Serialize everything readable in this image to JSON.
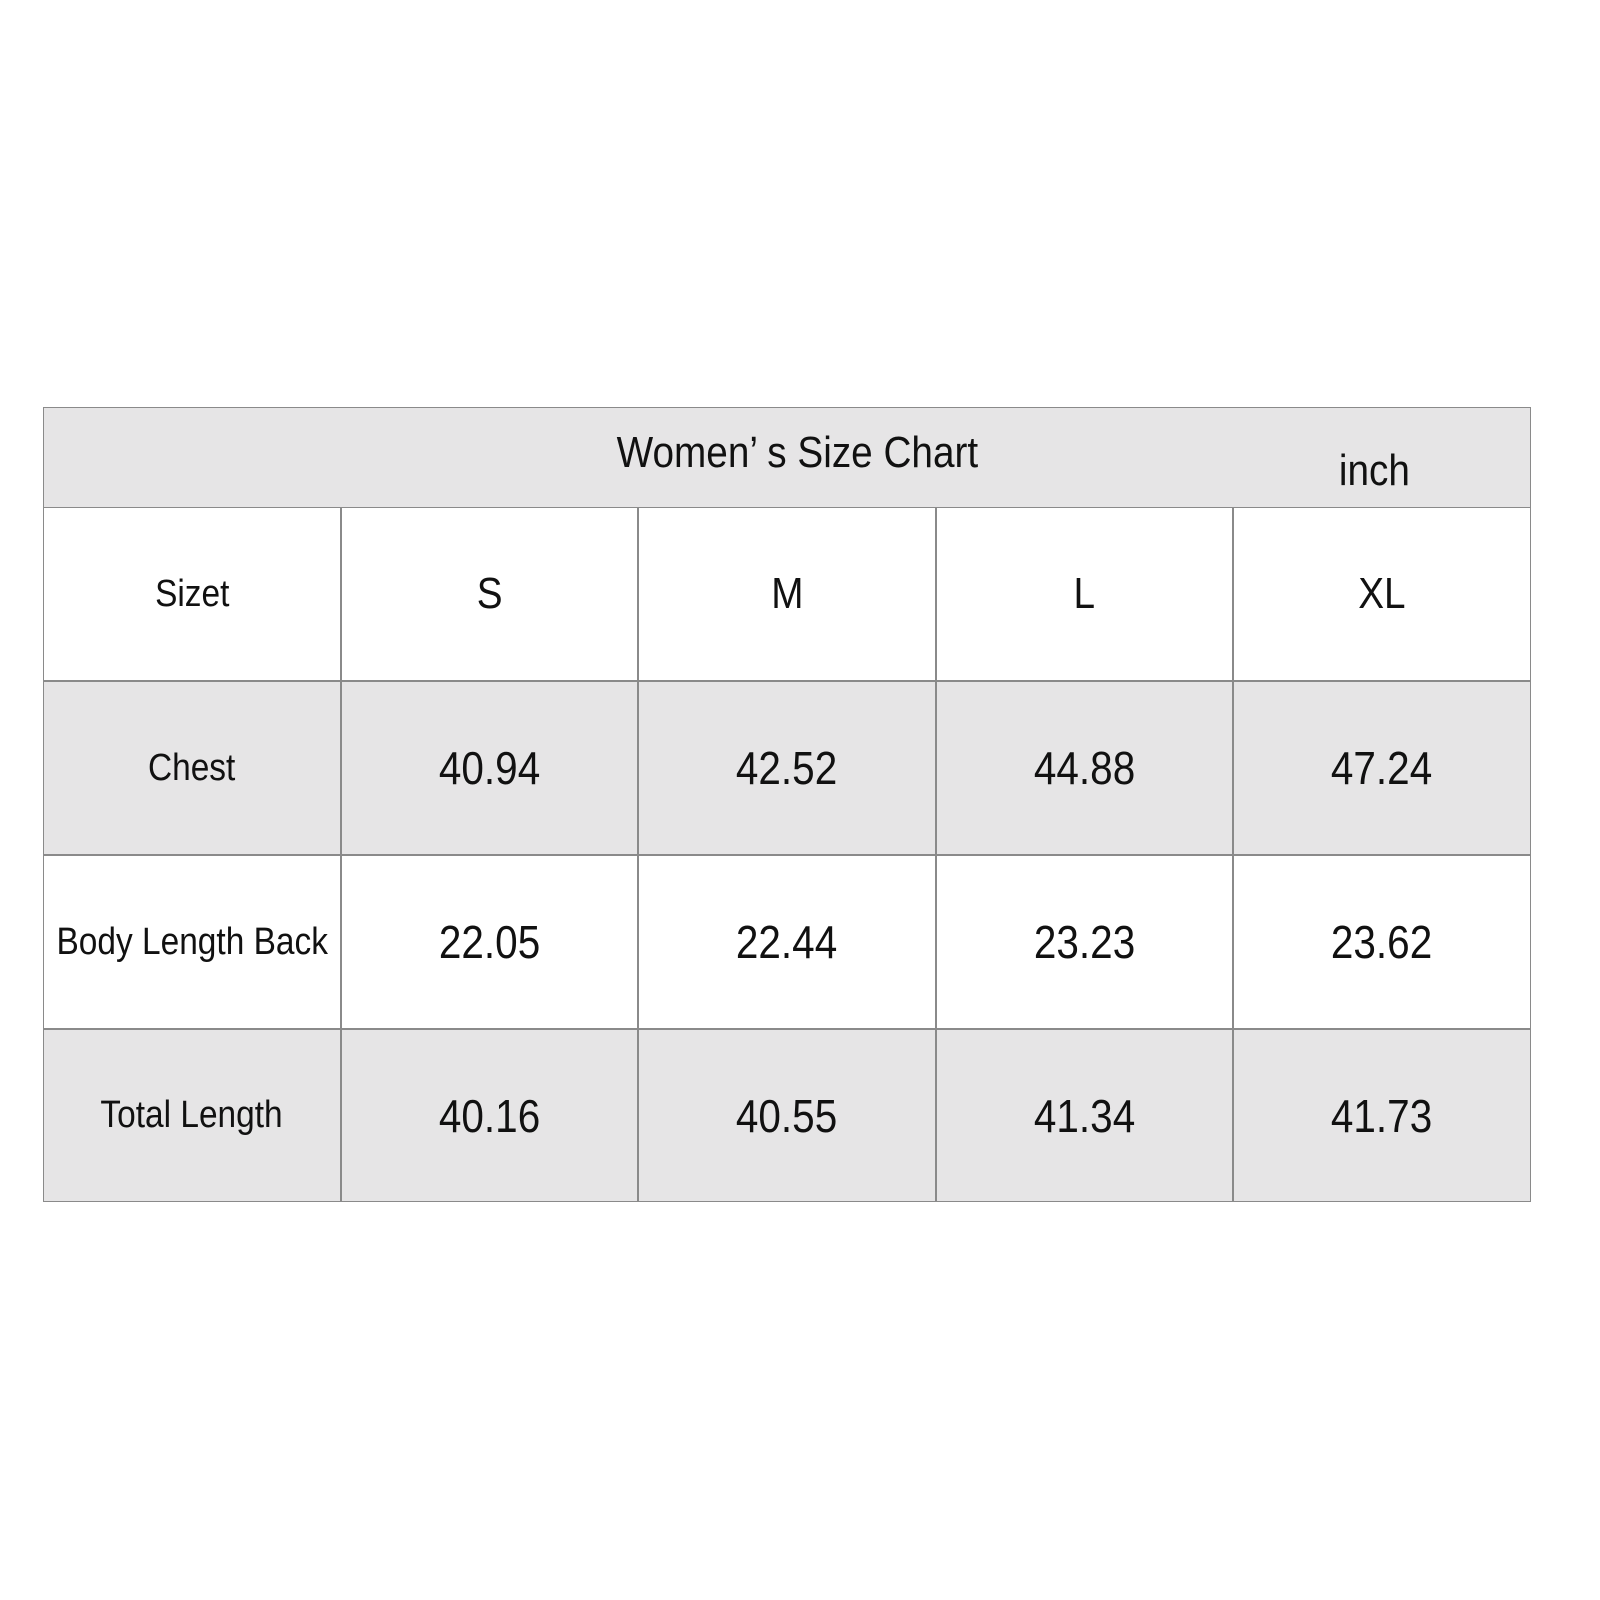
{
  "title": "Women’   s Size Chart",
  "unit": "inch",
  "columns": [
    "Sizet",
    "S",
    "M",
    "L",
    "XL"
  ],
  "rows": [
    {
      "label": "Chest",
      "values": [
        "40.94",
        "42.52",
        "44.88",
        "47.24"
      ]
    },
    {
      "label": "Body Length Back",
      "values": [
        "22.05",
        "22.44",
        "23.23",
        "23.62"
      ]
    },
    {
      "label": "Total Length",
      "values": [
        "40.16",
        "40.55",
        "41.34",
        "41.73"
      ]
    }
  ],
  "colors": {
    "row_fill": "#e6e5e6",
    "border": "#8a8a8a"
  }
}
